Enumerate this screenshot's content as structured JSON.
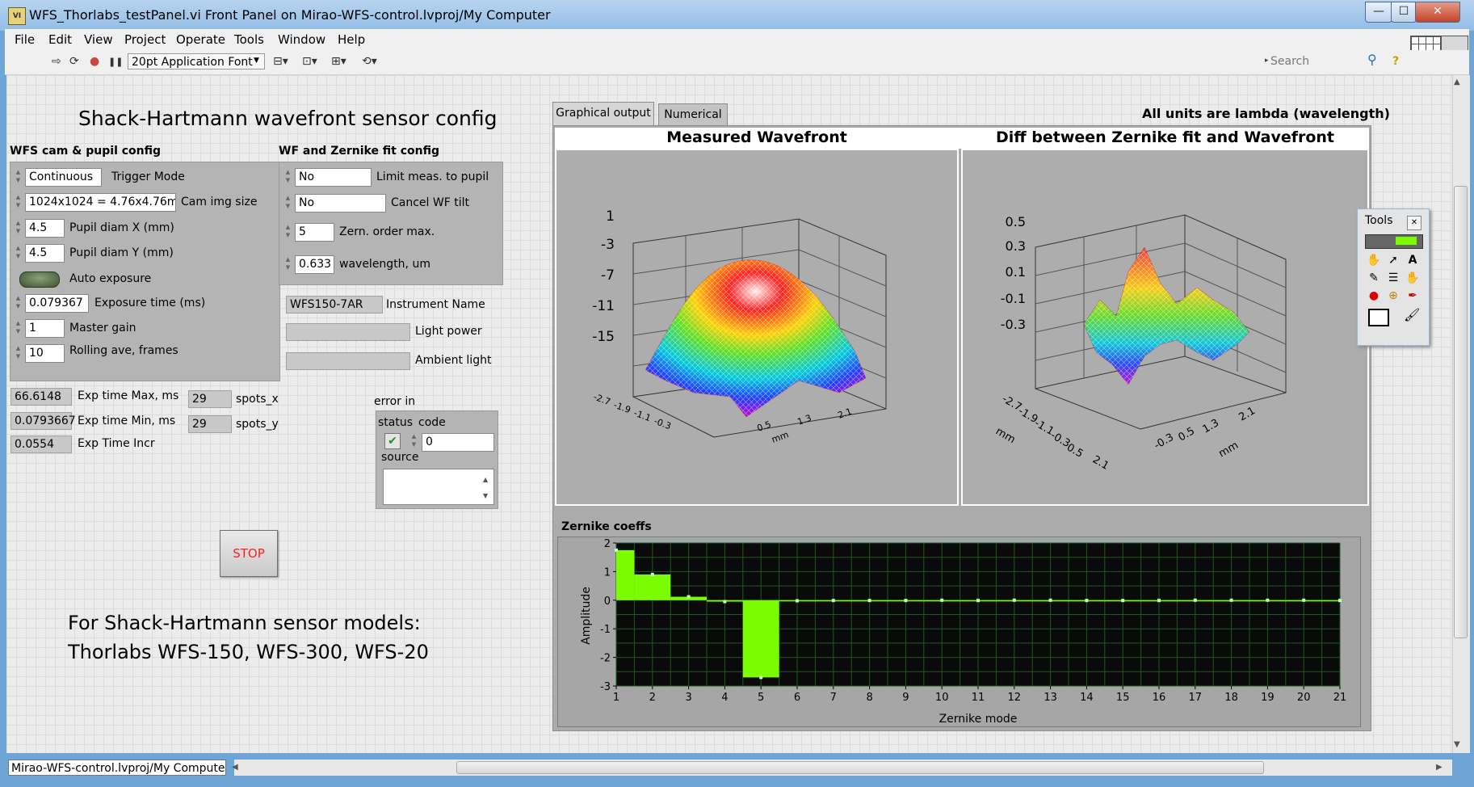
{
  "window": {
    "title": "WFS_Thorlabs_testPanel.vi Front Panel on Mirao-WFS-control.lvproj/My Computer",
    "icon_text": "VI",
    "minimize": "—",
    "maximize": "☐",
    "close": "✕"
  },
  "menu": [
    "File",
    "Edit",
    "View",
    "Project",
    "Operate",
    "Tools",
    "Window",
    "Help"
  ],
  "toolbar": {
    "run": "⇨",
    "run_continuous": "⟳",
    "abort": "●",
    "pause": "❚❚",
    "font": "20pt Application Font",
    "align": "⊟▾",
    "distribute": "⊡▾",
    "resize": "⊞▾",
    "reorder": "⟲▾",
    "search_placeholder": "Search",
    "search_icon": "⚲",
    "help_icon": "?"
  },
  "panel": {
    "main_title": "Shack-Hartmann wavefront sensor config",
    "footer_line1": "For Shack-Hartmann sensor models:",
    "footer_line2": "Thorlabs WFS-150, WFS-300, WFS-20",
    "stop_label": "STOP"
  },
  "cam": {
    "header": "WFS cam & pupil config",
    "trigger_mode": {
      "value": "Continuous",
      "label": "Trigger Mode"
    },
    "cam_img_size": {
      "value": "1024x1024 = 4.76x4.76mm",
      "label": "Cam img size"
    },
    "pupil_x": {
      "value": "4.5",
      "label": "Pupil diam X (mm)"
    },
    "pupil_y": {
      "value": "4.5",
      "label": "Pupil diam Y (mm)"
    },
    "auto_exposure_label": "Auto exposure",
    "exposure_time": {
      "value": "0.079367",
      "label": "Exposure time (ms)"
    },
    "master_gain": {
      "value": "1",
      "label": "Master gain"
    },
    "rolling_ave": {
      "value": "10",
      "label": "Rolling ave, frames"
    }
  },
  "stats": {
    "exp_max": {
      "value": "66.6148",
      "label": "Exp time Max, ms"
    },
    "exp_min": {
      "value": "0.0793667",
      "label": "Exp time Min, ms"
    },
    "exp_incr": {
      "value": "0.0554",
      "label": "Exp Time Incr"
    },
    "spots_x": {
      "value": "29",
      "label": "spots_x"
    },
    "spots_y": {
      "value": "29",
      "label": "spots_y"
    }
  },
  "wf": {
    "header": "WF and Zernike fit config",
    "limit_pupil": {
      "value": "No",
      "label": "Limit meas. to pupil"
    },
    "cancel_tilt": {
      "value": "No",
      "label": "Cancel WF tilt"
    },
    "zern_order": {
      "value": "5",
      "label": "Zern. order max."
    },
    "wavelength": {
      "value": "0.633",
      "label": "wavelength, um"
    }
  },
  "instrument": {
    "name": {
      "value": "WFS150-7AR",
      "label": "Instrument Name"
    },
    "light_power": {
      "value": "",
      "label": "Light power"
    },
    "ambient_light": {
      "value": "",
      "label": "Ambient light"
    }
  },
  "error_in": {
    "label": "error in",
    "status_label": "status",
    "code_label": "code",
    "code_value": "0",
    "source_label": "source",
    "status_check": "✔"
  },
  "tabs": {
    "graphical": "Graphical output",
    "numerical": "Numerical",
    "units_note": "All units are lambda (wavelength)"
  },
  "plot1": {
    "title": "Measured Wavefront",
    "z_ticks": [
      "1",
      "-3",
      "-7",
      "-11",
      "-15"
    ],
    "x_ticks": [
      "-2.7",
      "-1.9",
      "-1.1",
      "-0.3",
      "0.5",
      "1.3",
      "2.1"
    ],
    "axis_unit": "mm"
  },
  "plot2": {
    "title": "Diff between Zernike fit and Wavefront",
    "z_ticks": [
      "0.5",
      "0.3",
      "0.1",
      "-0.1",
      "-0.3"
    ],
    "x_ticks": [
      "-2.7",
      "-1.9",
      "-1.1",
      "-0.3",
      "0.5",
      "1.3",
      "2.1"
    ],
    "axis_unit": "mm"
  },
  "tools_palette": {
    "title": "Tools",
    "close": "✕",
    "icons": [
      "auto-select-icon",
      "led-icon",
      "operate-value-icon",
      "position-select-icon",
      "edit-text-icon",
      "connect-wire-icon",
      "shortcut-menu-icon",
      "scroll-window-icon",
      "breakpoint-icon",
      "probe-icon",
      "get-color-icon",
      "set-color-icon",
      "color-brush-icon"
    ]
  },
  "status": {
    "project": "Mirao-WFS-control.lvproj/My Computer"
  },
  "colors": {
    "accent_green": "#7cfc00",
    "chart_bg": "#0a0a0a",
    "grid_green": "#1f5a1f",
    "stop_text": "#ff2020"
  },
  "chart_data": {
    "type": "bar",
    "title": "Zernike coeffs",
    "xlabel": "Zernike mode",
    "ylabel": "Amplitude",
    "x": [
      1,
      2,
      3,
      4,
      5,
      6,
      7,
      8,
      9,
      10,
      11,
      12,
      13,
      14,
      15,
      16,
      17,
      18,
      19,
      20,
      21
    ],
    "values": [
      1.75,
      0.9,
      0.12,
      -0.05,
      -2.7,
      -0.02,
      -0.01,
      -0.01,
      -0.01,
      0.0,
      -0.01,
      0.0,
      0.0,
      -0.01,
      -0.01,
      -0.01,
      0.0,
      0.0,
      0.0,
      0.0,
      -0.01
    ],
    "ylim": [
      -3,
      2
    ],
    "y_ticks": [
      2,
      1,
      0,
      -1,
      -2,
      -3
    ],
    "xlim": [
      1,
      21
    ],
    "grid": true
  }
}
